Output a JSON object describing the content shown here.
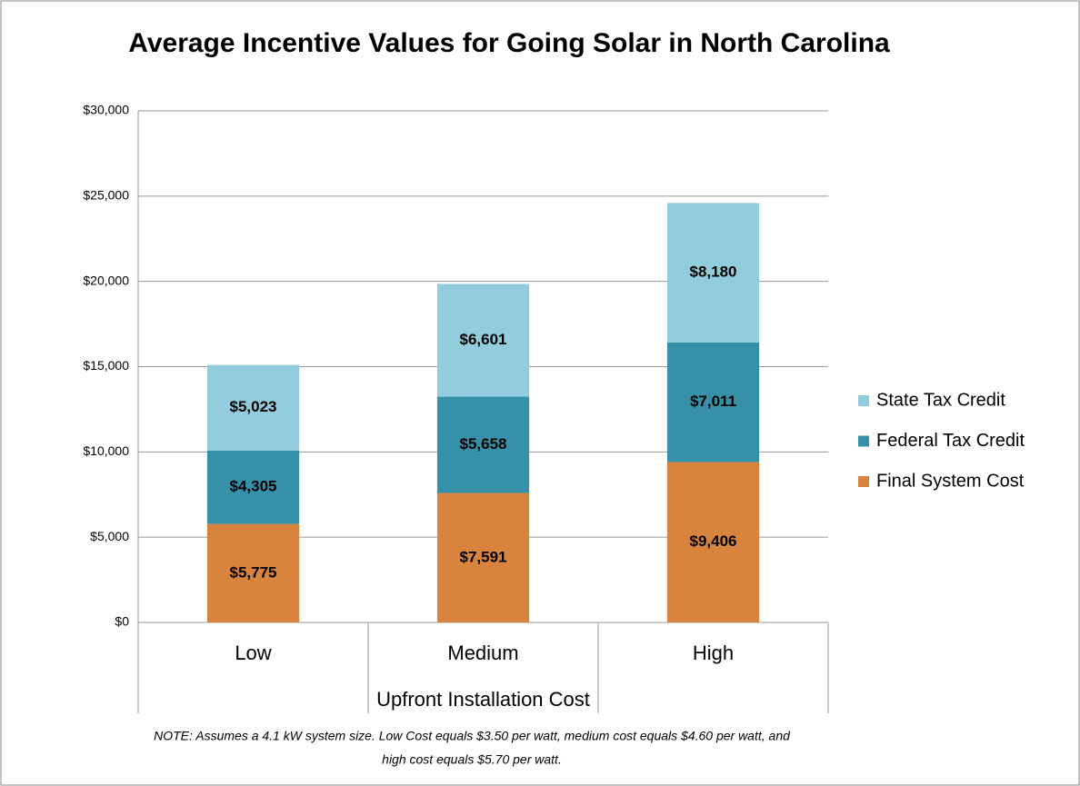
{
  "chart_data": {
    "type": "stacked_bar",
    "title": "Average Incentive Values for Going Solar in North Carolina",
    "x_label": "Upfront Installation Cost",
    "note": [
      "NOTE: Assumes a 4.1 kW system size. Low Cost equals $3.50 per watt, medium cost equals $4.60 per watt, and",
      "high cost equals $5.70 per watt."
    ],
    "categories": [
      "Low",
      "Medium",
      "High"
    ],
    "series": [
      {
        "name": "Final System Cost",
        "color": "#d9843e",
        "values": [
          5775,
          7591,
          9406
        ],
        "value_labels": [
          "$5,775",
          "$7,591",
          "$9,406"
        ]
      },
      {
        "name": "Federal Tax Credit",
        "color": "#3590a8",
        "values": [
          4305,
          5658,
          7011
        ],
        "value_labels": [
          "$4,305",
          "$5,658",
          "$7,011"
        ]
      },
      {
        "name": "State Tax Credit",
        "color": "#93cddd",
        "values": [
          5023,
          6601,
          8180
        ],
        "value_labels": [
          "$5,023",
          "$6,601",
          "$8,180"
        ]
      }
    ],
    "ylim": [
      0,
      30000
    ],
    "yticks": [
      {
        "value": 0,
        "label": "$0"
      },
      {
        "value": 5000,
        "label": "$5,000"
      },
      {
        "value": 10000,
        "label": "$10,000"
      },
      {
        "value": 15000,
        "label": "$15,000"
      },
      {
        "value": 20000,
        "label": "$20,000"
      },
      {
        "value": 25000,
        "label": "$25,000"
      },
      {
        "value": 30000,
        "label": "$30,000"
      }
    ],
    "grid": true,
    "legend": "right"
  }
}
